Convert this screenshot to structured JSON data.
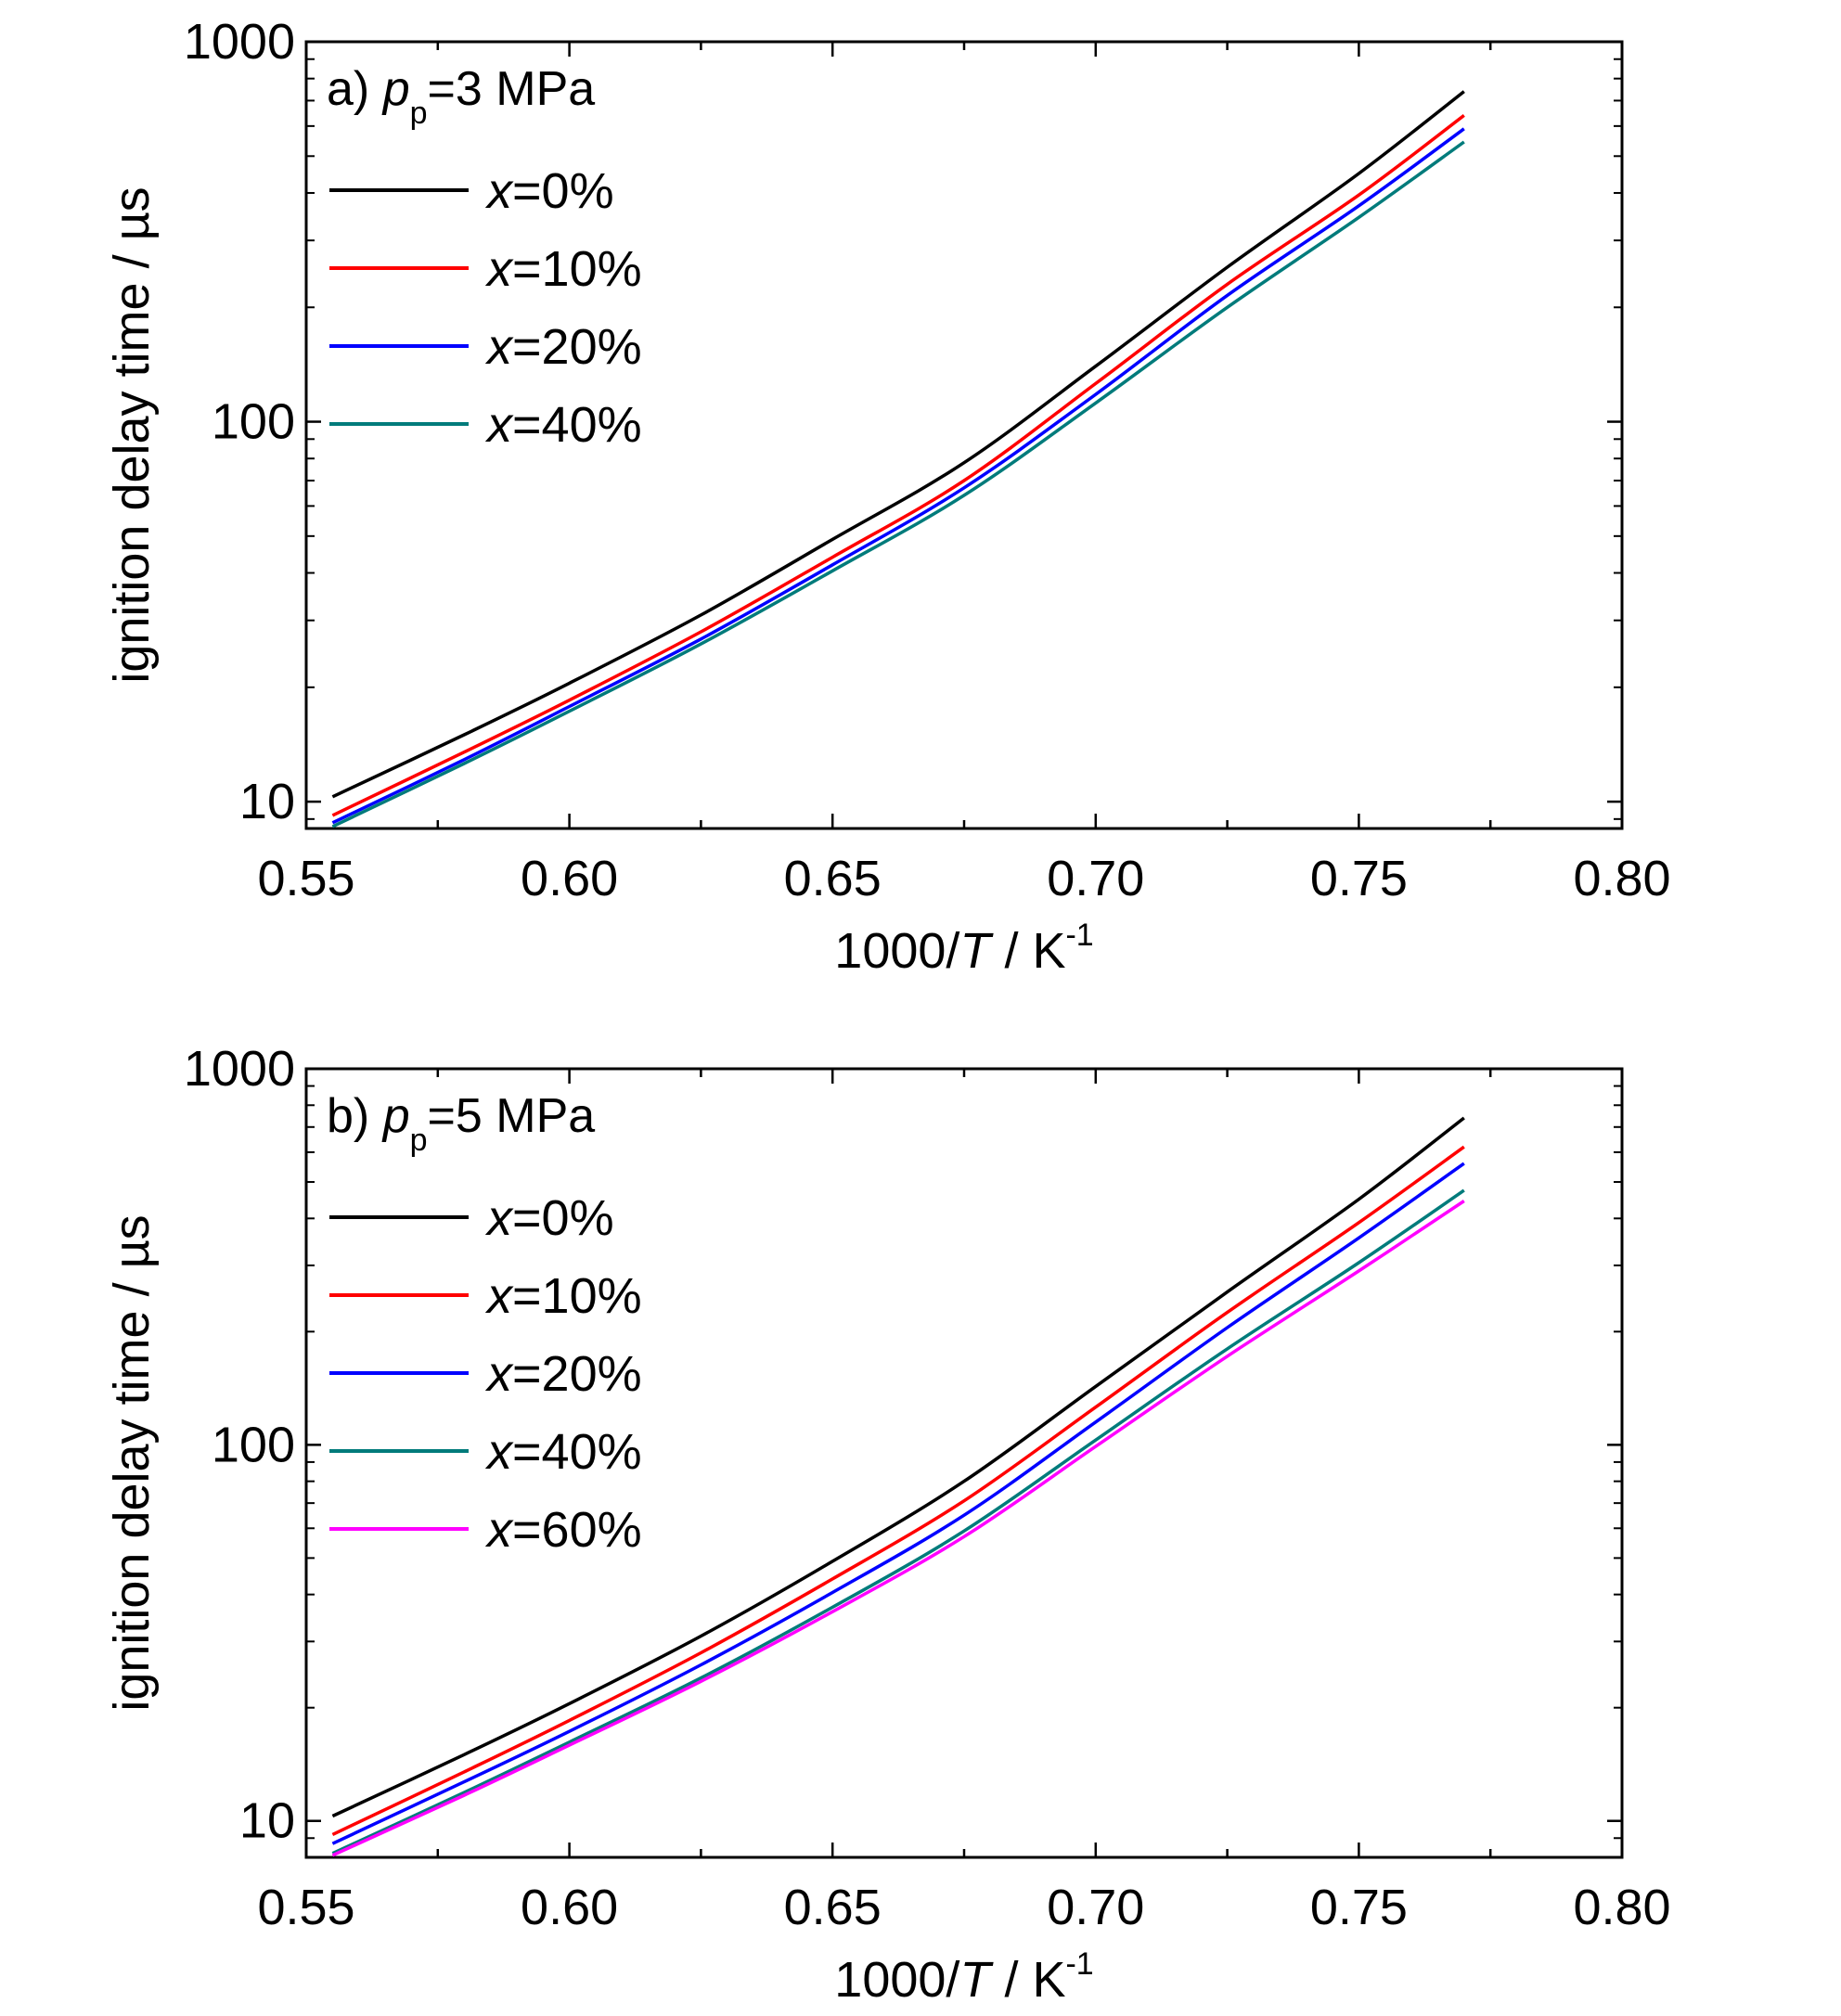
{
  "colors": {
    "x=0%": "#000000",
    "x=10%": "#ff0000",
    "x=20%": "#0000ff",
    "x=40%": "#007b7b",
    "x=60%": "#ff00ff"
  },
  "chart_data": [
    {
      "type": "line",
      "panel_label": "a)",
      "title_var": "p",
      "title_sub": "p",
      "title_value": "=3 MPa",
      "xlabel_pre": "1000/",
      "xlabel_var": "T",
      "xlabel_post": " / K",
      "xlabel_sup": "-1",
      "ylabel": "ignition delay time / µs",
      "xlim": [
        0.55,
        0.8
      ],
      "ylim": [
        8.5,
        1000
      ],
      "yscale": "log",
      "xticks": [
        "0.55",
        "0.60",
        "0.65",
        "0.70",
        "0.75",
        "0.80"
      ],
      "yticks": [
        "10",
        "100",
        "1000"
      ],
      "legend_position": "top-left",
      "x": [
        0.555,
        0.58,
        0.6,
        0.625,
        0.65,
        0.675,
        0.7,
        0.725,
        0.75,
        0.77
      ],
      "series": [
        {
          "name": "x=0%",
          "legend_var": "x",
          "legend_val": "=0%",
          "values": [
            10.3,
            15.0,
            20.5,
            31.0,
            49.0,
            78.0,
            140.0,
            255.0,
            450.0,
            740.0
          ]
        },
        {
          "name": "x=10%",
          "legend_var": "x",
          "legend_val": "=10%",
          "values": [
            9.2,
            13.5,
            18.5,
            28.0,
            44.0,
            70.0,
            126.0,
            230.0,
            395.0,
            640.0
          ]
        },
        {
          "name": "x=20%",
          "legend_var": "x",
          "legend_val": "=20%",
          "values": [
            8.8,
            12.9,
            17.8,
            26.8,
            42.0,
            67.0,
            118.0,
            215.0,
            370.0,
            590.0
          ]
        },
        {
          "name": "x=40%",
          "legend_var": "x",
          "legend_val": "=40%",
          "values": [
            8.6,
            12.6,
            17.3,
            26.0,
            40.5,
            64.0,
            112.0,
            200.0,
            345.0,
            545.0
          ]
        }
      ]
    },
    {
      "type": "line",
      "panel_label": "b)",
      "title_var": "p",
      "title_sub": "p",
      "title_value": "=5 MPa",
      "xlabel_pre": "1000/",
      "xlabel_var": "T",
      "xlabel_post": " / K",
      "xlabel_sup": "-1",
      "ylabel": "ignition delay time / µs",
      "xlim": [
        0.55,
        0.8
      ],
      "ylim": [
        8.0,
        1000
      ],
      "yscale": "log",
      "xticks": [
        "0.55",
        "0.60",
        "0.65",
        "0.70",
        "0.75",
        "0.80"
      ],
      "yticks": [
        "10",
        "100",
        "1000"
      ],
      "legend_position": "top-left",
      "x": [
        0.555,
        0.58,
        0.6,
        0.625,
        0.65,
        0.675,
        0.7,
        0.725,
        0.75,
        0.77
      ],
      "series": [
        {
          "name": "x=0%",
          "legend_var": "x",
          "legend_val": "=0%",
          "values": [
            10.3,
            15.0,
            20.5,
            31.0,
            49.0,
            80.0,
            143.0,
            255.0,
            450.0,
            740.0
          ]
        },
        {
          "name": "x=10%",
          "legend_var": "x",
          "legend_val": "=10%",
          "values": [
            9.2,
            13.5,
            18.5,
            28.0,
            44.0,
            71.0,
            126.0,
            225.0,
            390.0,
            620.0
          ]
        },
        {
          "name": "x=20%",
          "legend_var": "x",
          "legend_val": "=20%",
          "values": [
            8.7,
            12.7,
            17.3,
            26.0,
            40.5,
            65.0,
            115.0,
            205.0,
            355.0,
            560.0
          ]
        },
        {
          "name": "x=40%",
          "legend_var": "x",
          "legend_val": "=40%",
          "values": [
            8.2,
            11.9,
            16.2,
            24.0,
            37.0,
            59.0,
            103.0,
            180.0,
            305.0,
            475.0
          ]
        },
        {
          "name": "x=60%",
          "legend_var": "x",
          "legend_val": "=60%",
          "values": [
            8.1,
            11.7,
            15.9,
            23.5,
            36.0,
            57.0,
            99.0,
            172.0,
            290.0,
            445.0
          ]
        }
      ]
    }
  ]
}
